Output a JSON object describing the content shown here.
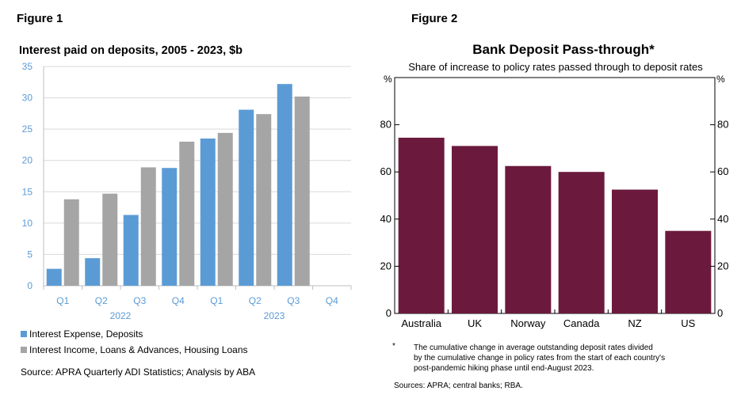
{
  "figure1": {
    "label": "Figure 1",
    "chart_data": {
      "type": "bar",
      "title": "Interest paid on deposits, 2005 - 2023, $b",
      "categories": [
        "Q1",
        "Q2",
        "Q3",
        "Q4",
        "Q1",
        "Q2",
        "Q3",
        "Q4"
      ],
      "year_labels": [
        "2022",
        "2023"
      ],
      "yticks": [
        0,
        5,
        10,
        15,
        20,
        25,
        30,
        35
      ],
      "ylim": [
        0,
        35
      ],
      "series": [
        {
          "name": "Interest Expense, Deposits",
          "color": "#5b9bd5",
          "values": [
            2.7,
            4.4,
            11.3,
            18.8,
            23.5,
            28.1,
            32.2,
            null
          ]
        },
        {
          "name": "Interest Income, Loans & Advances, Housing Loans",
          "color": "#a5a5a5",
          "values": [
            13.8,
            14.7,
            18.9,
            23.0,
            24.4,
            27.4,
            30.2,
            null
          ]
        }
      ],
      "grid": true,
      "legend": "bottom-left"
    },
    "source": "Source: APRA Quarterly ADI Statistics; Analysis by ABA"
  },
  "figure2": {
    "label": "Figure 2",
    "chart_data": {
      "type": "bar",
      "title": "Bank Deposit Pass-through*",
      "subtitle": "Share of increase to policy rates passed through to deposit rates",
      "ylabel_left": "%",
      "ylabel_right": "%",
      "categories": [
        "Australia",
        "UK",
        "Norway",
        "Canada",
        "NZ",
        "US"
      ],
      "values": [
        74.5,
        71,
        62.5,
        60,
        52.5,
        35
      ],
      "color": "#6b1a3d",
      "yticks": [
        0,
        20,
        40,
        60,
        80
      ],
      "ylim": [
        0,
        100
      ],
      "grid": false
    },
    "footnote_marker": "*",
    "footnote_lines": [
      "The cumulative change in average outstanding deposit rates divided",
      "by the cumulative change in policy rates from the start of each country's",
      "post-pandemic hiking phase until end-August 2023."
    ],
    "sources": "Sources: APRA; central banks; RBA."
  }
}
